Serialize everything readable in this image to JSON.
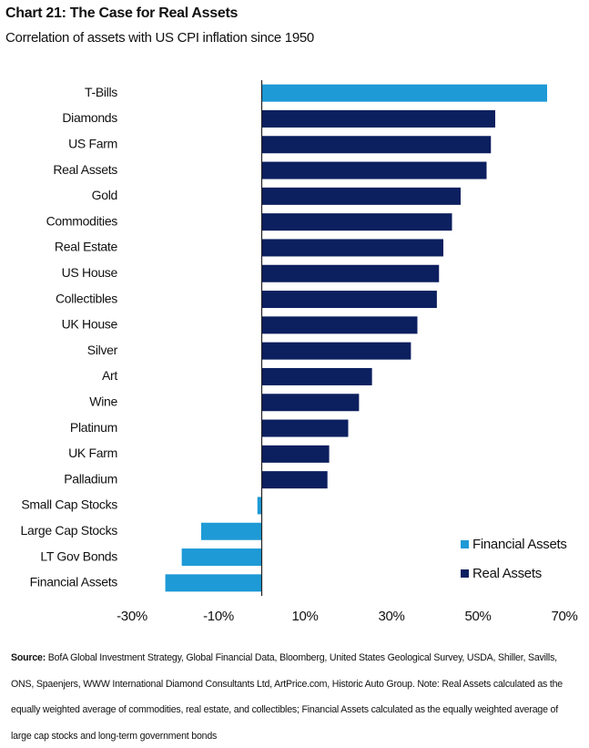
{
  "chart_data": {
    "type": "hbar",
    "title": "Chart 21: The Case for Real Assets",
    "subtitle": "Correlation of assets with US CPI inflation since 1950",
    "categories": [
      "T-Bills",
      "Diamonds",
      "US Farm",
      "Real Assets",
      "Gold",
      "Commodities",
      "Real Estate",
      "US House",
      "Collectibles",
      "UK House",
      "Silver",
      "Art",
      "Wine",
      "Platinum",
      "UK Farm",
      "Palladium",
      "Small Cap Stocks",
      "Large Cap Stocks",
      "LT Gov Bonds",
      "Financial Assets"
    ],
    "series": [
      {
        "name": "Financial Assets",
        "color": "#1e9ad6",
        "values": [
          66,
          null,
          null,
          null,
          null,
          null,
          null,
          null,
          null,
          null,
          null,
          null,
          null,
          null,
          null,
          null,
          -1,
          -14,
          -18.5,
          -22.3
        ]
      },
      {
        "name": "Real Assets",
        "color": "#0c1f5f",
        "values": [
          null,
          54,
          53,
          52,
          46,
          44,
          42,
          41,
          40.5,
          36,
          34.5,
          25.5,
          22.5,
          20,
          15.6,
          15.2,
          null,
          null,
          null,
          null
        ]
      }
    ],
    "xlim": [
      -30,
      70
    ],
    "xticks": [
      {
        "value": -30,
        "label": "-30%"
      },
      {
        "value": -10,
        "label": "-10%"
      },
      {
        "value": 10,
        "label": "10%"
      },
      {
        "value": 30,
        "label": "30%"
      },
      {
        "value": 50,
        "label": "50%"
      },
      {
        "value": 70,
        "label": "70%"
      }
    ],
    "legend": "bottom-right",
    "source_label": "Source:",
    "source_text": "BofA Global Investment Strategy, Global Financial Data, Bloomberg, United States Geological Survey, USDA, Shiller, Savills, ONS, Spaenjers, WWW International Diamond Consultants Ltd, ArtPrice.com, Historic Auto Group. Note: Real Assets calculated as the equally weighted average of commodities, real estate, and collectibles; Financial Assets calculated as the equally weighted average of large cap stocks and long-term government bonds"
  }
}
